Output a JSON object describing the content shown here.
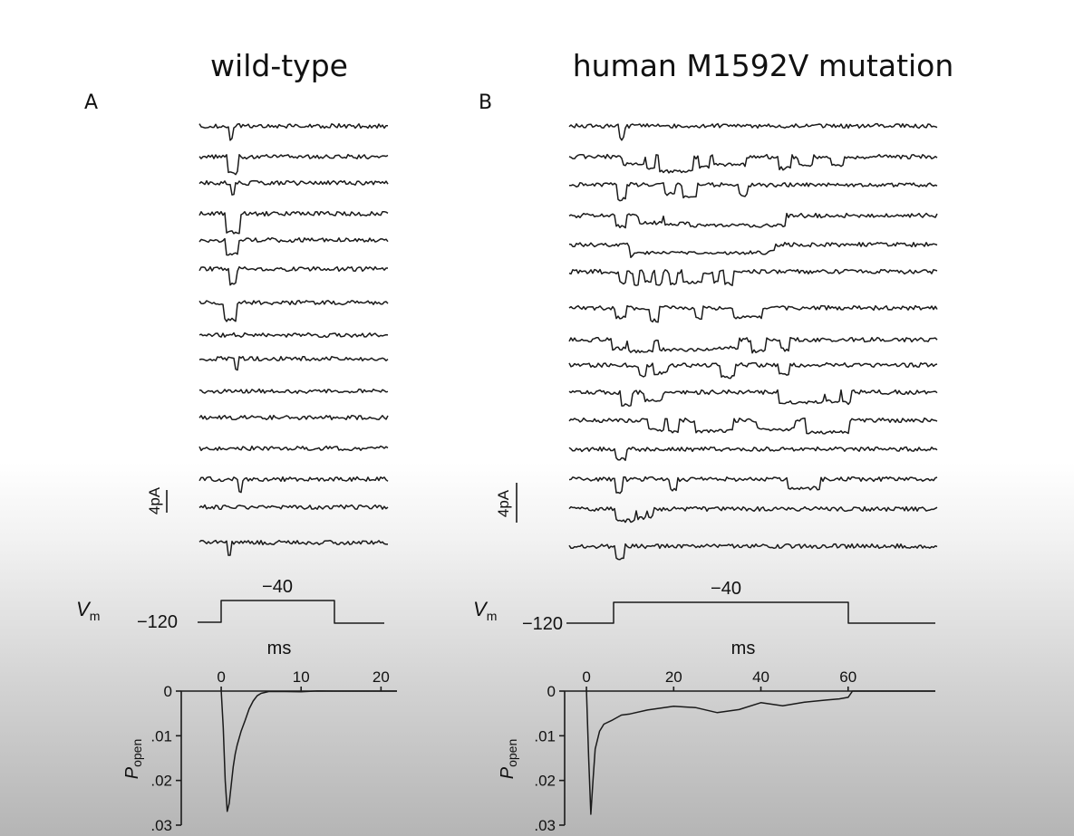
{
  "panels": [
    {
      "title": "wild-type",
      "letter": "A",
      "scale_bar": "4pA",
      "vm_symbol": "V",
      "vm_sub": "m",
      "voltage_low": "−120",
      "voltage_high": "−40",
      "time_unit": "ms",
      "time_ticks": [
        "0",
        "10",
        "20"
      ],
      "popen_ticks": [
        "0",
        ".01",
        ".02",
        ".03"
      ],
      "popen_label": "P",
      "popen_sub": "open"
    },
    {
      "title": "human M1592V mutation",
      "letter": "B",
      "scale_bar": "4pA",
      "vm_symbol": "V",
      "vm_sub": "m",
      "voltage_low": "−120",
      "voltage_high": "−40",
      "time_unit": "ms",
      "time_ticks": [
        "0",
        "20",
        "40",
        "60"
      ],
      "popen_ticks": [
        "0",
        ".01",
        ".02",
        ".03"
      ],
      "popen_label": "P",
      "popen_sub": "open"
    }
  ],
  "chart_data": [
    {
      "type": "line",
      "title": "wild-type",
      "xlabel": "ms",
      "ylabel": "P open",
      "xlim": [
        -5,
        22
      ],
      "ylim": [
        0,
        0.03
      ],
      "x_ticks": [
        0,
        10,
        20
      ],
      "y_ticks": [
        0,
        0.01,
        0.02,
        0.03
      ],
      "y_inverted": true,
      "voltage_step": {
        "holding_mV": -120,
        "test_mV": -40,
        "start_ms": 0,
        "end_ms": 14.5
      },
      "series": [
        {
          "x": [
            0,
            0.25,
            0.5,
            0.75,
            1,
            1.25,
            1.5,
            1.75,
            2,
            2.5,
            3,
            3.5,
            4,
            4.5,
            5,
            6,
            8,
            10,
            12,
            14,
            16,
            18,
            20,
            22
          ],
          "y": [
            0,
            0.008,
            0.02,
            0.027,
            0.025,
            0.021,
            0.017,
            0.014,
            0.012,
            0.009,
            0.0065,
            0.004,
            0.0022,
            0.001,
            0.0005,
            0.0002,
            0.0001,
            0.0002,
            0.0001,
            0,
            0,
            0,
            0,
            0
          ]
        }
      ]
    },
    {
      "type": "line",
      "title": "human M1592V mutation",
      "xlabel": "ms",
      "ylabel": "P open",
      "xlim": [
        -5,
        80
      ],
      "ylim": [
        0,
        0.03
      ],
      "x_ticks": [
        0,
        20,
        40,
        60
      ],
      "y_ticks": [
        0,
        0.01,
        0.02,
        0.03
      ],
      "y_inverted": true,
      "voltage_step": {
        "holding_mV": -120,
        "test_mV": -40,
        "start_ms": 0,
        "end_ms": 60
      },
      "series": [
        {
          "x": [
            0,
            0.5,
            1,
            1.5,
            2,
            3,
            4,
            6,
            8,
            10,
            14,
            20,
            25,
            30,
            35,
            40,
            45,
            50,
            55,
            58,
            60,
            61,
            65,
            70,
            75,
            80
          ],
          "y": [
            0,
            0.015,
            0.0275,
            0.02,
            0.013,
            0.009,
            0.0075,
            0.0065,
            0.0055,
            0.005,
            0.0042,
            0.0035,
            0.0038,
            0.0048,
            0.0042,
            0.0025,
            0.0032,
            0.0025,
            0.002,
            0.0018,
            0.0015,
            0,
            0,
            0,
            0,
            0
          ]
        }
      ]
    }
  ]
}
